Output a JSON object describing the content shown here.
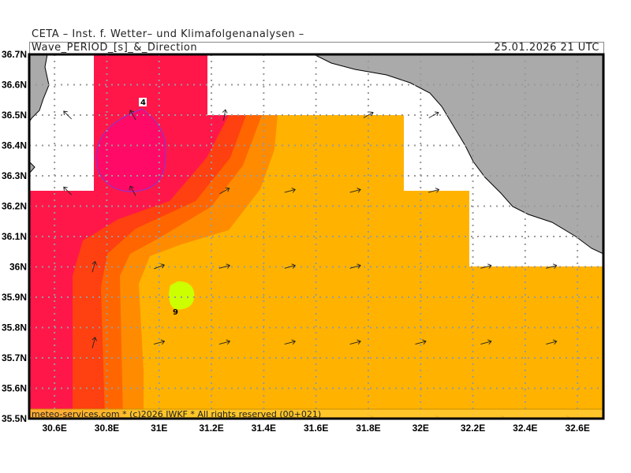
{
  "header": {
    "institute": "CETA – Inst. f. Wetter– und Klimafolgenanalysen –",
    "product": "Wave_PERIOD_[s]_&_Direction",
    "valid_time": "25.01.2026 21 UTC"
  },
  "footer": "meteo-services.com * (c)2026 IWKF * All rights reserved (00+021)",
  "axes": {
    "lat_labels": [
      "36.7N",
      "36.6N",
      "36.5N",
      "36.4N",
      "36.3N",
      "36.2N",
      "36.1N",
      "36N",
      "35.9N",
      "35.8N",
      "35.7N",
      "35.6N",
      "35.5N"
    ],
    "lon_labels": [
      "30.6E",
      "30.8E",
      "31E",
      "31.2E",
      "31.4E",
      "31.6E",
      "31.8E",
      "32E",
      "32.2E",
      "32.4E",
      "32.6E"
    ]
  },
  "contour_labels": [
    "4",
    "9"
  ],
  "colors": {
    "land": "#aaaaaa",
    "p4": "#ff0a66",
    "p5": "#ff174a",
    "p6": "#ff4010",
    "p7": "#ff6600",
    "p8": "#ff8c00",
    "p8b": "#ffb300",
    "p9": "#ccff00"
  },
  "arrows": [
    [
      30.65,
      36.5,
      315
    ],
    [
      30.9,
      36.5,
      330
    ],
    [
      31.25,
      36.5,
      10
    ],
    [
      31.8,
      36.5,
      60
    ],
    [
      32.05,
      36.5,
      60
    ],
    [
      30.65,
      36.25,
      315
    ],
    [
      30.9,
      36.25,
      330
    ],
    [
      31.25,
      36.25,
      60
    ],
    [
      31.5,
      36.25,
      75
    ],
    [
      31.75,
      36.25,
      75
    ],
    [
      32.05,
      36.25,
      75
    ],
    [
      30.75,
      36.0,
      15
    ],
    [
      31.0,
      36.0,
      70
    ],
    [
      31.25,
      36.0,
      75
    ],
    [
      31.5,
      36.0,
      75
    ],
    [
      31.75,
      36.0,
      75
    ],
    [
      32.25,
      36.0,
      75
    ],
    [
      32.5,
      36.0,
      75
    ],
    [
      30.75,
      35.75,
      15
    ],
    [
      31.0,
      35.75,
      75
    ],
    [
      31.25,
      35.75,
      75
    ],
    [
      31.5,
      35.75,
      75
    ],
    [
      31.75,
      35.75,
      75
    ],
    [
      32.0,
      35.75,
      75
    ],
    [
      32.25,
      35.75,
      75
    ],
    [
      32.5,
      35.75,
      75
    ],
    [
      30.75,
      35.5,
      10
    ],
    [
      31.0,
      35.5,
      75
    ],
    [
      31.25,
      35.5,
      75
    ],
    [
      31.5,
      35.5,
      75
    ],
    [
      31.8,
      35.5,
      80
    ],
    [
      32.05,
      35.5,
      80
    ],
    [
      32.3,
      35.5,
      80
    ],
    [
      32.55,
      35.5,
      80
    ]
  ]
}
